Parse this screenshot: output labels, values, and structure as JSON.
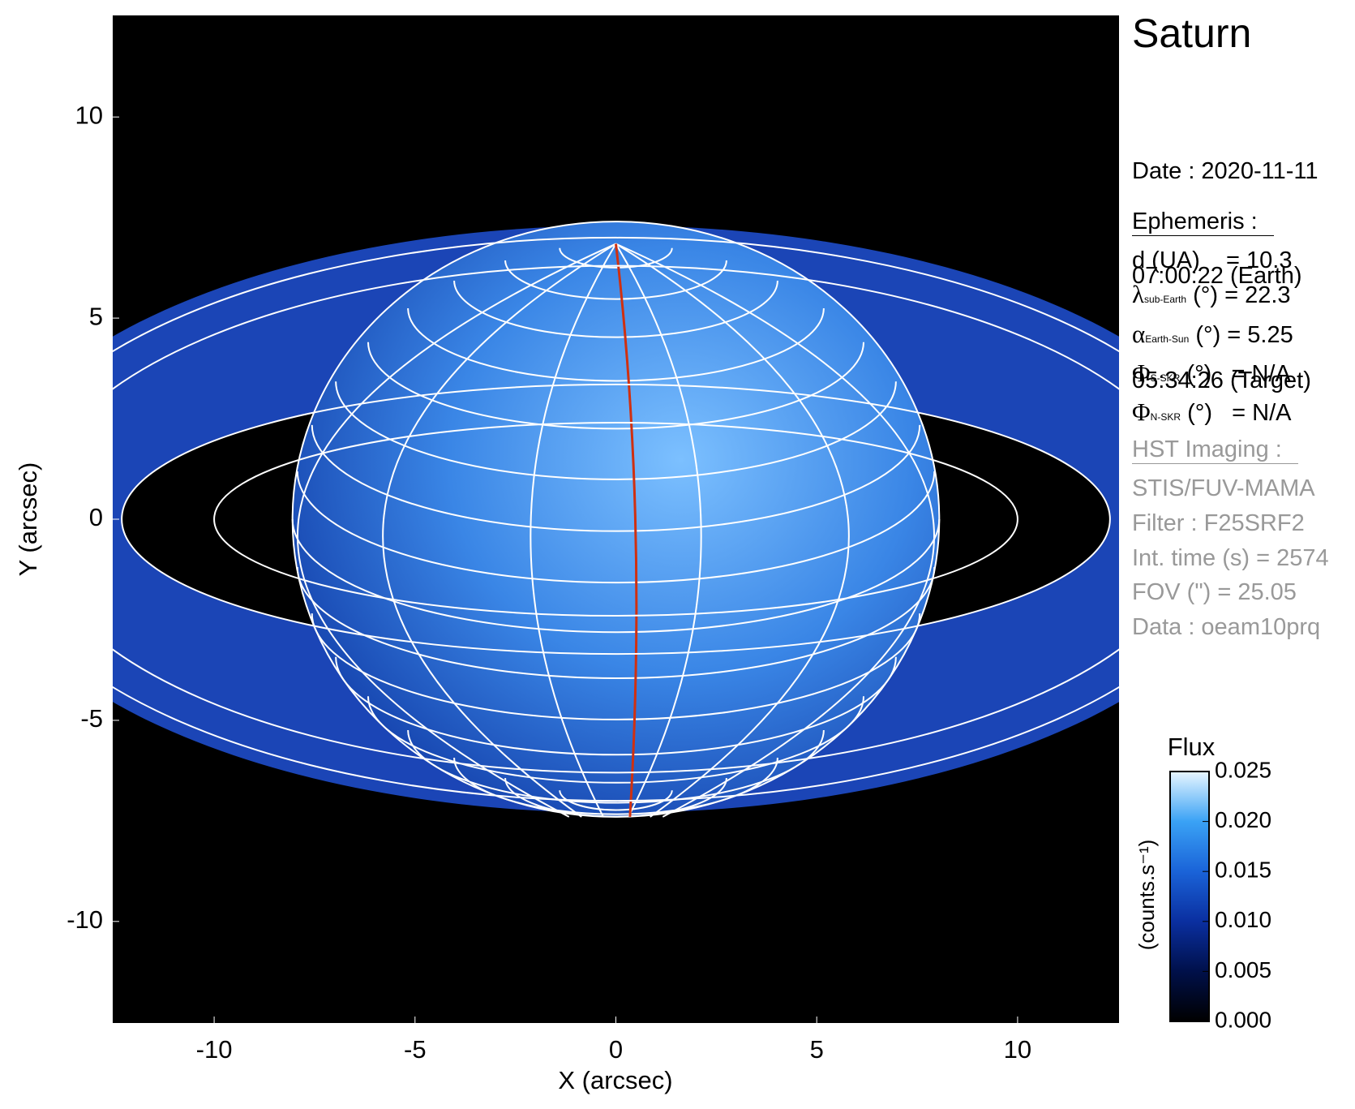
{
  "chart_data": {
    "type": "image",
    "title": "Saturn",
    "xlabel": "X (arcsec)",
    "ylabel": "Y (arcsec)",
    "xlim": [
      -12.525,
      12.525
    ],
    "ylim": [
      -12.525,
      12.525
    ],
    "xticks": [
      -10,
      -5,
      0,
      5,
      10
    ],
    "yticks": [
      -10,
      -5,
      0,
      5,
      10
    ],
    "colorbar": {
      "title": "Flux",
      "label": "(counts.s⁻¹)",
      "lim": [
        0,
        0.025
      ],
      "ticks": [
        {
          "value": 0,
          "label": "0.000"
        },
        {
          "value": 0.005,
          "label": "0.005"
        },
        {
          "value": 0.01,
          "label": "0.010"
        },
        {
          "value": 0.015,
          "label": "0.015"
        },
        {
          "value": 0.02,
          "label": "0.020"
        },
        {
          "value": 0.025,
          "label": "0.025"
        }
      ],
      "colors": [
        "#000000",
        "#00104a",
        "#0a2fa0",
        "#1a63d8",
        "#3aa2f5",
        "#e8f6ff"
      ]
    },
    "info": {
      "date": [
        "Date : 2020-11-11",
        "07:00:22 (Earth)",
        "05:34:26 (Target)"
      ],
      "ephemeris_title": "Ephemeris :",
      "ephemeris": [
        {
          "text": "d (UA)    = 10.3"
        },
        {
          "symbol": "λ",
          "subscript": "sub-Earth",
          "text": " (°) = 22.3"
        },
        {
          "symbol": "α",
          "subscript": "Earth-Sun",
          "text": " (°) = 5.25"
        },
        {
          "symbol": "Φ",
          "subscript": "S-SKR",
          "text": " (°)   = N/A"
        },
        {
          "symbol": "Φ",
          "subscript": "N-SKR",
          "text": " (°)   = N/A"
        }
      ],
      "hst_title": "HST Imaging :",
      "hst": [
        "STIS/FUV-MAMA",
        "Filter : F25SRF2",
        "Int. time (s) = 2574",
        "FOV (\") = 25.05",
        "Data : oeam10prq"
      ]
    }
  }
}
